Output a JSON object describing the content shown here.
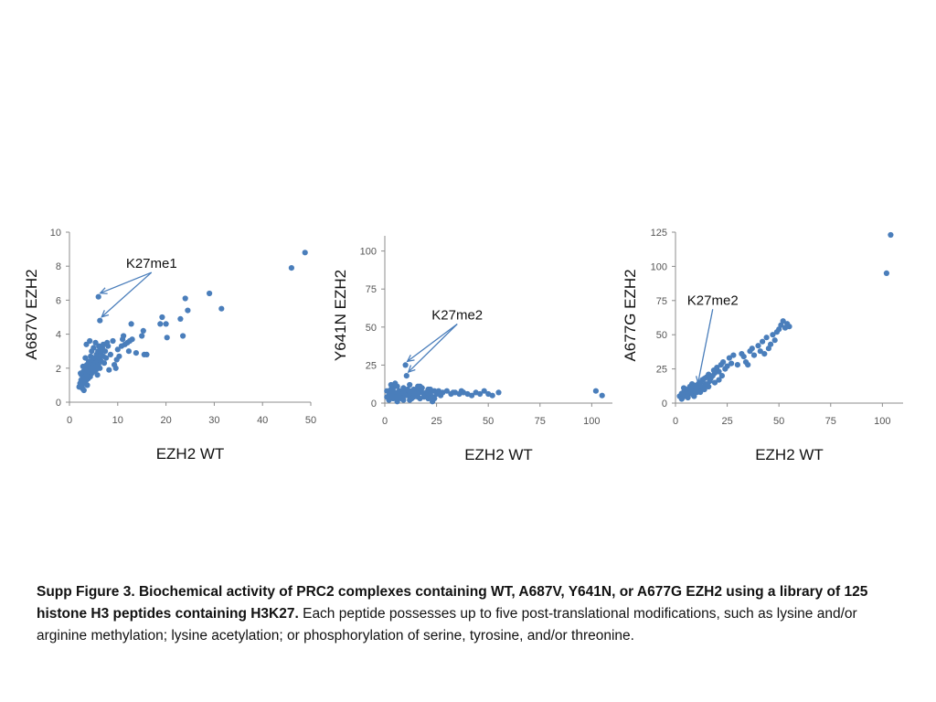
{
  "colors": {
    "marker": "#4a7ebb",
    "axis": "#8c8c8c",
    "text": "#111111"
  },
  "caption": {
    "bold": "Supp Figure 3. Biochemical activity of PRC2 complexes containing WT, A687V, Y641N, or A677G EZH2 using a library of 125 histone H3 peptides containing H3K27.",
    "normal": " Each peptide possesses up to five post-translational modifications, such as lysine and/or arginine methylation; lysine acetylation; or phosphorylation of serine, tyrosine, and/or threonine."
  },
  "chart_data": [
    {
      "type": "scatter",
      "xlabel": "EZH2 WT",
      "ylabel": "A687V EZH2",
      "xlim": [
        0,
        50
      ],
      "ylim": [
        0,
        10
      ],
      "xticks": [
        0,
        10,
        20,
        30,
        40,
        50
      ],
      "yticks": [
        0,
        2,
        4,
        6,
        8,
        10
      ],
      "annotation": {
        "text": "K27me1",
        "targets": [
          [
            6.0,
            6.2
          ],
          [
            6.3,
            4.8
          ]
        ],
        "label_at": [
          17,
          7.9
        ]
      },
      "points": [
        [
          2.0,
          0.9
        ],
        [
          2.2,
          1.1
        ],
        [
          2.4,
          1.3
        ],
        [
          2.5,
          1.6
        ],
        [
          2.6,
          1.0
        ],
        [
          2.7,
          0.8
        ],
        [
          2.8,
          1.4
        ],
        [
          2.9,
          1.8
        ],
        [
          3.0,
          1.2
        ],
        [
          3.1,
          1.5
        ],
        [
          3.2,
          2.0
        ],
        [
          3.3,
          1.1
        ],
        [
          3.4,
          1.7
        ],
        [
          3.5,
          1.3
        ],
        [
          3.6,
          2.2
        ],
        [
          3.7,
          1.6
        ],
        [
          3.8,
          1.9
        ],
        [
          3.9,
          1.4
        ],
        [
          4.0,
          2.4
        ],
        [
          4.1,
          1.8
        ],
        [
          4.2,
          2.1
        ],
        [
          4.3,
          1.5
        ],
        [
          4.4,
          2.7
        ],
        [
          4.5,
          2.0
        ],
        [
          4.6,
          1.7
        ],
        [
          4.7,
          2.3
        ],
        [
          4.8,
          1.9
        ],
        [
          4.9,
          2.5
        ],
        [
          5.0,
          2.2
        ],
        [
          5.1,
          1.8
        ],
        [
          5.2,
          2.6
        ],
        [
          5.3,
          2.0
        ],
        [
          5.4,
          2.3
        ],
        [
          5.5,
          1.9
        ],
        [
          5.6,
          2.8
        ],
        [
          5.7,
          2.1
        ],
        [
          5.8,
          2.4
        ],
        [
          5.9,
          3.0
        ],
        [
          6.0,
          2.2
        ],
        [
          6.2,
          2.6
        ],
        [
          6.3,
          2.0
        ],
        [
          6.5,
          2.9
        ],
        [
          6.6,
          2.4
        ],
        [
          6.8,
          3.2
        ],
        [
          7.0,
          2.7
        ],
        [
          7.2,
          2.3
        ],
        [
          7.4,
          3.0
        ],
        [
          7.6,
          2.6
        ],
        [
          3.5,
          3.4
        ],
        [
          4.2,
          3.6
        ],
        [
          5.0,
          3.2
        ],
        [
          5.4,
          3.5
        ],
        [
          6.1,
          3.3
        ],
        [
          6.4,
          3.0
        ],
        [
          7.0,
          3.4
        ],
        [
          8.0,
          3.3
        ],
        [
          8.5,
          2.8
        ],
        [
          9.0,
          3.6
        ],
        [
          9.3,
          2.2
        ],
        [
          9.6,
          2.0
        ],
        [
          10.0,
          3.1
        ],
        [
          10.3,
          2.7
        ],
        [
          11.0,
          3.7
        ],
        [
          11.5,
          3.4
        ],
        [
          12.0,
          3.5
        ],
        [
          12.3,
          3.0
        ],
        [
          12.8,
          4.6
        ],
        [
          13.0,
          3.7
        ],
        [
          13.8,
          2.9
        ],
        [
          15.0,
          3.9
        ],
        [
          15.3,
          4.2
        ],
        [
          15.5,
          2.8
        ],
        [
          16.0,
          2.8
        ],
        [
          18.8,
          4.6
        ],
        [
          19.2,
          5.0
        ],
        [
          20.0,
          4.6
        ],
        [
          20.2,
          3.8
        ],
        [
          23.0,
          4.9
        ],
        [
          23.5,
          3.9
        ],
        [
          24.0,
          6.1
        ],
        [
          24.5,
          5.4
        ],
        [
          29.0,
          6.4
        ],
        [
          31.5,
          5.5
        ],
        [
          46.0,
          7.9
        ],
        [
          48.8,
          8.8
        ],
        [
          6.0,
          6.2
        ],
        [
          6.3,
          4.8
        ],
        [
          3.0,
          0.7
        ],
        [
          2.3,
          1.7
        ],
        [
          3.7,
          1.0
        ],
        [
          8.2,
          1.9
        ],
        [
          9.8,
          2.5
        ],
        [
          11.2,
          3.9
        ],
        [
          12.5,
          3.6
        ],
        [
          4.6,
          3.0
        ],
        [
          5.8,
          1.6
        ],
        [
          2.8,
          2.1
        ],
        [
          3.3,
          2.6
        ],
        [
          7.8,
          3.5
        ],
        [
          10.8,
          3.3
        ]
      ]
    },
    {
      "type": "scatter",
      "xlabel": "EZH2 WT",
      "ylabel": "Y641N EZH2",
      "xlim": [
        0,
        110
      ],
      "ylim": [
        0,
        110
      ],
      "xticks": [
        0,
        25,
        50,
        75,
        100
      ],
      "yticks": [
        0,
        25,
        50,
        75,
        100
      ],
      "annotation": {
        "text": "K27me2",
        "targets": [
          [
            10.0,
            25.0
          ],
          [
            10.5,
            18.0
          ]
        ],
        "label_at": [
          35,
          55
        ]
      },
      "points": [
        [
          1,
          8
        ],
        [
          2,
          5
        ],
        [
          3,
          9
        ],
        [
          4,
          3
        ],
        [
          5,
          7
        ],
        [
          6,
          11
        ],
        [
          7,
          4
        ],
        [
          8,
          6
        ],
        [
          9,
          2
        ],
        [
          10,
          8
        ],
        [
          11,
          5
        ],
        [
          12,
          7
        ],
        [
          13,
          3
        ],
        [
          14,
          9
        ],
        [
          15,
          6
        ],
        [
          16,
          4
        ],
        [
          17,
          8
        ],
        [
          18,
          10
        ],
        [
          19,
          5
        ],
        [
          20,
          7
        ],
        [
          21,
          3
        ],
        [
          22,
          6
        ],
        [
          23,
          4
        ],
        [
          24,
          8
        ],
        [
          2,
          2
        ],
        [
          3,
          6
        ],
        [
          4,
          10
        ],
        [
          5,
          4
        ],
        [
          6,
          1
        ],
        [
          7,
          8
        ],
        [
          8,
          3
        ],
        [
          9,
          7
        ],
        [
          10,
          5
        ],
        [
          11,
          9
        ],
        [
          12,
          2
        ],
        [
          13,
          6
        ],
        [
          14,
          4
        ],
        [
          15,
          8
        ],
        [
          16,
          6
        ],
        [
          17,
          3
        ],
        [
          18,
          7
        ],
        [
          20,
          5
        ],
        [
          22,
          9
        ],
        [
          24,
          3
        ],
        [
          25,
          6
        ],
        [
          27,
          5
        ],
        [
          28,
          7
        ],
        [
          30,
          8
        ],
        [
          32,
          6
        ],
        [
          34,
          7
        ],
        [
          36,
          6
        ],
        [
          38,
          7
        ],
        [
          40,
          6
        ],
        [
          42,
          5
        ],
        [
          44,
          7
        ],
        [
          46,
          6
        ],
        [
          48,
          8
        ],
        [
          50,
          6
        ],
        [
          52,
          5
        ],
        [
          55,
          7
        ],
        [
          102,
          8
        ],
        [
          105,
          5
        ],
        [
          10,
          25
        ],
        [
          10.5,
          18
        ],
        [
          3,
          12
        ],
        [
          5,
          13
        ],
        [
          12,
          12
        ],
        [
          16,
          11
        ],
        [
          19,
          4
        ],
        [
          23,
          1
        ],
        [
          1,
          4
        ],
        [
          7,
          6
        ],
        [
          9,
          10
        ],
        [
          13,
          8
        ],
        [
          15,
          5
        ],
        [
          17,
          11
        ],
        [
          21,
          9
        ],
        [
          26,
          8
        ],
        [
          33,
          7
        ],
        [
          37,
          8
        ]
      ]
    },
    {
      "type": "scatter",
      "xlabel": "EZH2 WT",
      "ylabel": "A677G EZH2",
      "xlim": [
        0,
        110
      ],
      "ylim": [
        0,
        125
      ],
      "xticks": [
        0,
        25,
        50,
        75,
        100
      ],
      "yticks": [
        0,
        25,
        50,
        75,
        100,
        125
      ],
      "annotation": {
        "text": "K27me2",
        "targets": [
          [
            10.0,
            12.0
          ]
        ],
        "label_at": [
          18,
          72
        ]
      },
      "points": [
        [
          2,
          5
        ],
        [
          3,
          7
        ],
        [
          3.5,
          4
        ],
        [
          4,
          8
        ],
        [
          4.5,
          6
        ],
        [
          5,
          10
        ],
        [
          5.5,
          5
        ],
        [
          6,
          9
        ],
        [
          6.5,
          7
        ],
        [
          7,
          12
        ],
        [
          7.5,
          8
        ],
        [
          8,
          10
        ],
        [
          8.5,
          6
        ],
        [
          9,
          13
        ],
        [
          9.5,
          9
        ],
        [
          10,
          11
        ],
        [
          10.5,
          8
        ],
        [
          11,
          14
        ],
        [
          11.5,
          10
        ],
        [
          12,
          15
        ],
        [
          12.5,
          12
        ],
        [
          13,
          17
        ],
        [
          13.5,
          11
        ],
        [
          14,
          18
        ],
        [
          14.5,
          14
        ],
        [
          15,
          19
        ],
        [
          15.5,
          13
        ],
        [
          16,
          21
        ],
        [
          16.5,
          16
        ],
        [
          17,
          18
        ],
        [
          18,
          20
        ],
        [
          18.5,
          24
        ],
        [
          19,
          22
        ],
        [
          20,
          26
        ],
        [
          21,
          23
        ],
        [
          22,
          28
        ],
        [
          22.5,
          20
        ],
        [
          23,
          30
        ],
        [
          24,
          25
        ],
        [
          25,
          27
        ],
        [
          26,
          33
        ],
        [
          27,
          29
        ],
        [
          28,
          35
        ],
        [
          30,
          28
        ],
        [
          32,
          36
        ],
        [
          33,
          34
        ],
        [
          34,
          30
        ],
        [
          35,
          28
        ],
        [
          36,
          38
        ],
        [
          37,
          40
        ],
        [
          38,
          35
        ],
        [
          40,
          42
        ],
        [
          41,
          38
        ],
        [
          42,
          45
        ],
        [
          43,
          36
        ],
        [
          44,
          48
        ],
        [
          45,
          40
        ],
        [
          46,
          43
        ],
        [
          47,
          50
        ],
        [
          48,
          46
        ],
        [
          49,
          52
        ],
        [
          50,
          54
        ],
        [
          51,
          57
        ],
        [
          52,
          60
        ],
        [
          53,
          55
        ],
        [
          54,
          58
        ],
        [
          55,
          56
        ],
        [
          102,
          95
        ],
        [
          104,
          123
        ],
        [
          10,
          12
        ],
        [
          3,
          3
        ],
        [
          4,
          11
        ],
        [
          6,
          4
        ],
        [
          8,
          14
        ],
        [
          9,
          5
        ],
        [
          12,
          8
        ],
        [
          14,
          10
        ],
        [
          16,
          12
        ],
        [
          19,
          15
        ],
        [
          21,
          17
        ]
      ]
    }
  ]
}
